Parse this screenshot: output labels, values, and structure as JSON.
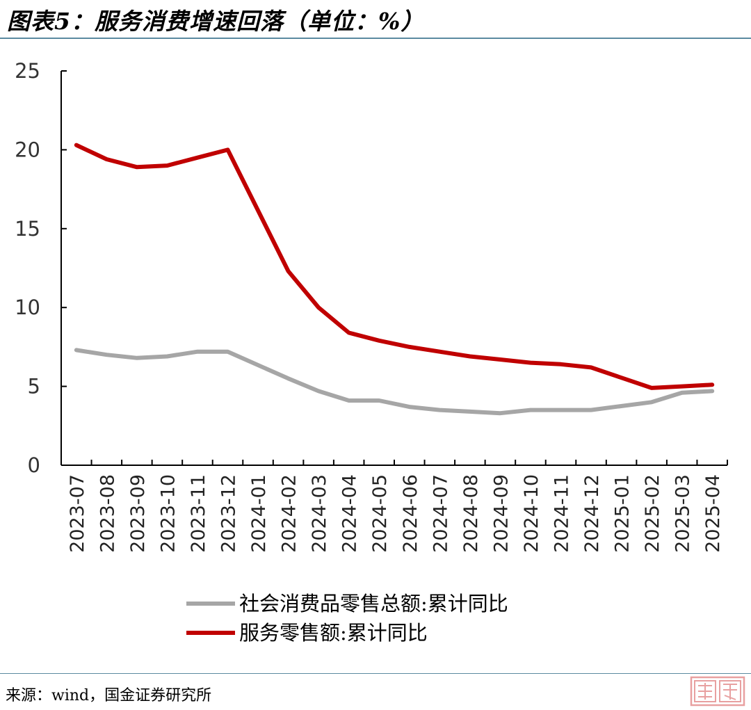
{
  "header": {
    "title": "图表5：服务消费增速回落（单位：%）"
  },
  "footer": {
    "source": "来源：wind，国金证券研究所"
  },
  "colors": {
    "rule": "#5a8aa0",
    "watermark": "#e8a0a0"
  },
  "chart_data": {
    "type": "line",
    "title": "图表5：服务消费增速回落（单位：%）",
    "xlabel": "",
    "ylabel": "",
    "ylim": [
      0,
      25
    ],
    "yticks": [
      0,
      5,
      10,
      15,
      20,
      25
    ],
    "grid": false,
    "legend_position": "bottom",
    "categories": [
      "2023-07",
      "2023-08",
      "2023-09",
      "2023-10",
      "2023-11",
      "2023-12",
      "2024-01",
      "2024-02",
      "2024-03",
      "2024-04",
      "2024-05",
      "2024-06",
      "2024-07",
      "2024-08",
      "2024-09",
      "2024-10",
      "2024-11",
      "2024-12",
      "2025-01",
      "2025-02",
      "2025-03",
      "2025-04"
    ],
    "series": [
      {
        "name": "社会消费品零售总额:累计同比",
        "color": "#a6a6a6",
        "values": [
          7.3,
          7.0,
          6.8,
          6.9,
          7.2,
          7.2,
          null,
          5.5,
          4.7,
          4.1,
          4.1,
          3.7,
          3.5,
          3.4,
          3.3,
          3.5,
          3.5,
          3.5,
          null,
          4.0,
          4.6,
          4.7
        ]
      },
      {
        "name": "服务零售额:累计同比",
        "color": "#c00000",
        "values": [
          20.3,
          19.4,
          18.9,
          19.0,
          19.5,
          20.0,
          null,
          12.3,
          10.0,
          8.4,
          7.9,
          7.5,
          7.2,
          6.9,
          6.7,
          6.5,
          6.4,
          6.2,
          null,
          4.9,
          5.0,
          5.1
        ]
      }
    ]
  }
}
